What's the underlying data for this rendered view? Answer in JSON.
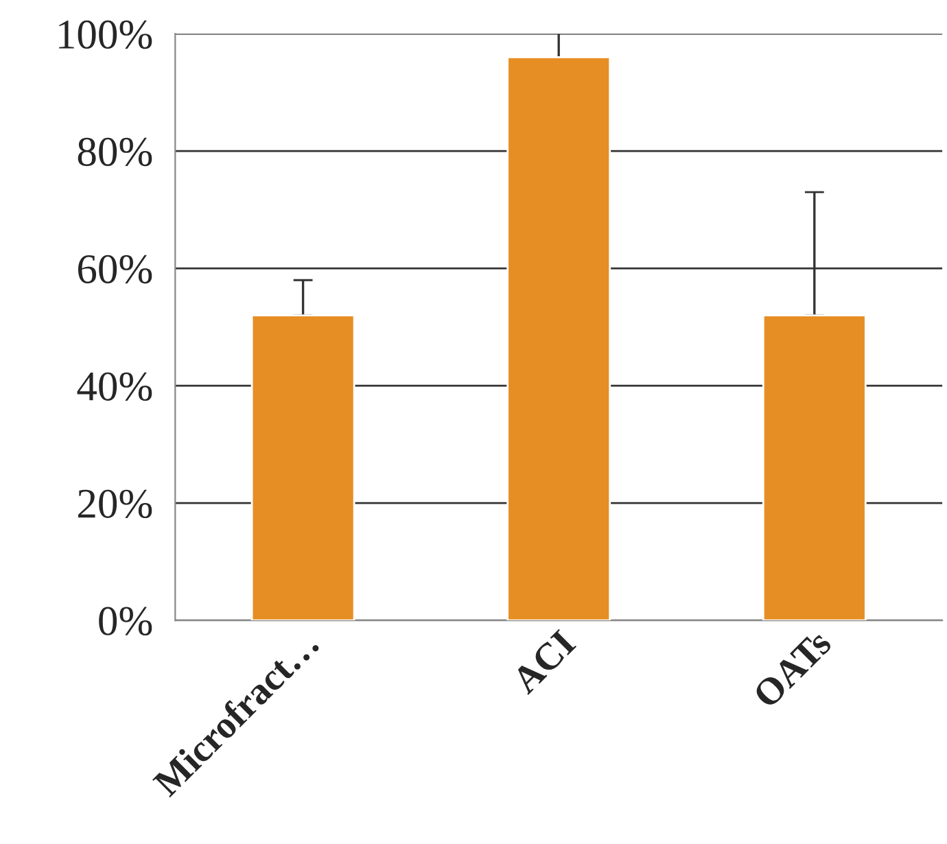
{
  "chart_data": {
    "type": "bar",
    "categories": [
      "Microfract…",
      "ACI",
      "OATs"
    ],
    "values": [
      52,
      96,
      52
    ],
    "errors": [
      [
        52,
        58
      ],
      [
        96,
        100
      ],
      [
        52,
        73
      ]
    ],
    "color": "#e68e23",
    "ylim": [
      0,
      100
    ],
    "yticks": [
      {
        "value": 0,
        "label": "0%"
      },
      {
        "value": 20,
        "label": "20%"
      },
      {
        "value": 40,
        "label": "40%"
      },
      {
        "value": 60,
        "label": "60%"
      },
      {
        "value": 80,
        "label": "80%"
      },
      {
        "value": 100,
        "label": "100%"
      }
    ],
    "grid": "y"
  }
}
